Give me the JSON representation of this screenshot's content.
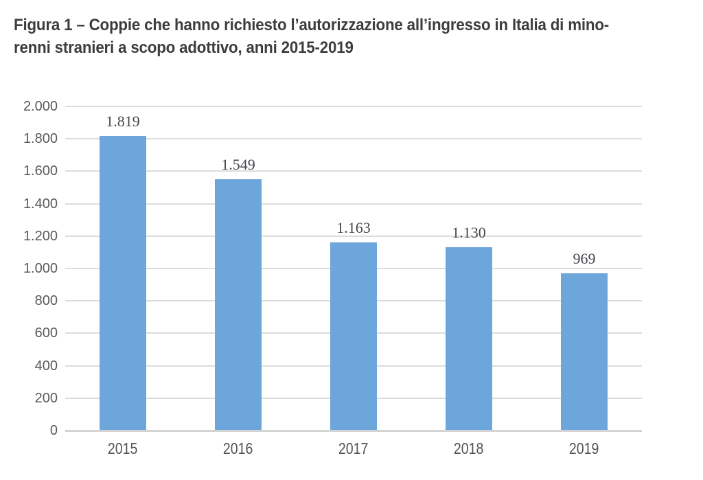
{
  "figure": {
    "title_line1": "Figura 1 – Coppie che hanno richiesto l’autorizzazione all’ingresso in Italia di mino-",
    "title_line2": "renni stranieri a scopo adottivo, anni 2015-2019"
  },
  "chart_data": {
    "type": "bar",
    "title": "Figura 1 – Coppie che hanno richiesto l’autorizzazione all’ingresso in Italia di minorenni stranieri a scopo adottivo, anni 2015-2019",
    "categories": [
      "2015",
      "2016",
      "2017",
      "2018",
      "2019"
    ],
    "values": [
      1819,
      1549,
      1163,
      1130,
      969
    ],
    "value_labels": [
      "1.819",
      "1.549",
      "1.163",
      "1.130",
      "969"
    ],
    "xlabel": "",
    "ylabel": "",
    "ylim": [
      0,
      2000
    ],
    "ytick_step": 200,
    "ytick_labels": [
      "0",
      "200",
      "400",
      "600",
      "800",
      "1.000",
      "1.200",
      "1.400",
      "1.600",
      "1.800",
      "2.000"
    ],
    "grid": true,
    "legend_position": "none",
    "bar_color": "#6DA6DB",
    "gridline_color": "#dcdcdc",
    "axis_line_color": "#d4d4d4",
    "label_color": "#45474d",
    "tick_color": "#595959"
  }
}
